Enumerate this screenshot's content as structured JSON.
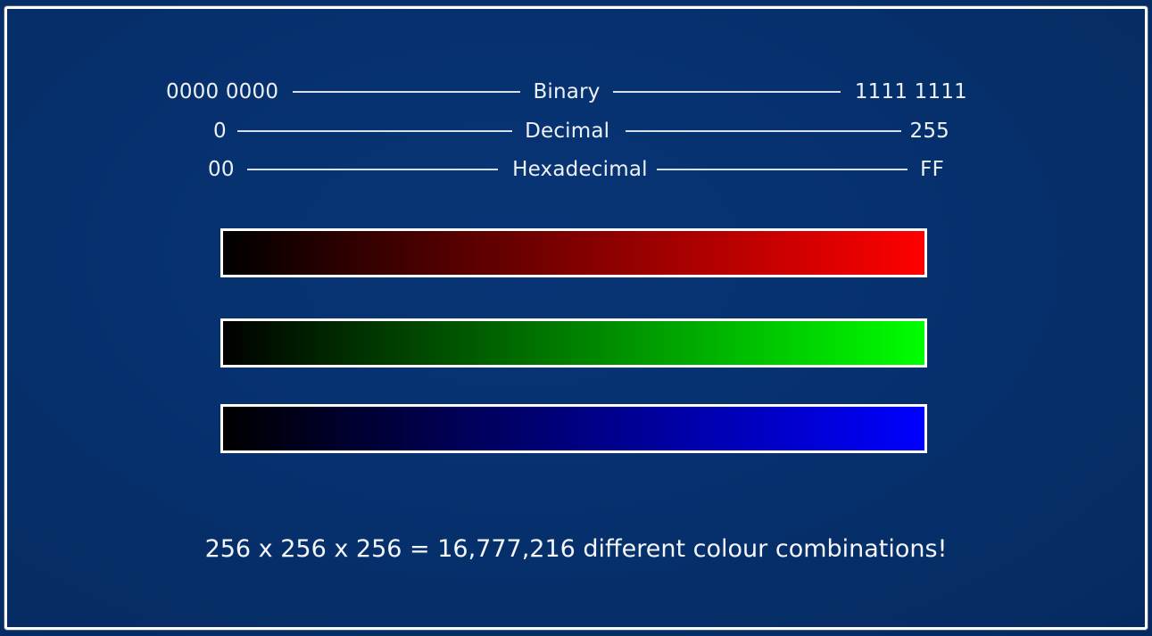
{
  "scales": {
    "binary": {
      "min": "0000 0000",
      "label": "Binary",
      "max": "1111 1111"
    },
    "decimal": {
      "min": "0",
      "label": "Decimal",
      "max": "255"
    },
    "hexadecimal": {
      "min": "00",
      "label": "Hexadecimal",
      "max": "FF"
    }
  },
  "gradients": [
    {
      "channel": "red",
      "from": "#000000",
      "to": "#ff0000"
    },
    {
      "channel": "green",
      "from": "#000000",
      "to": "#00ff00"
    },
    {
      "channel": "blue",
      "from": "#000000",
      "to": "#0000ff"
    }
  ],
  "caption": "256 x 256 x 256 = 16,777,216 different colour combinations!",
  "colors": {
    "background": "#06306c",
    "frame": "#ffffff",
    "text": "#f2f4f8"
  }
}
